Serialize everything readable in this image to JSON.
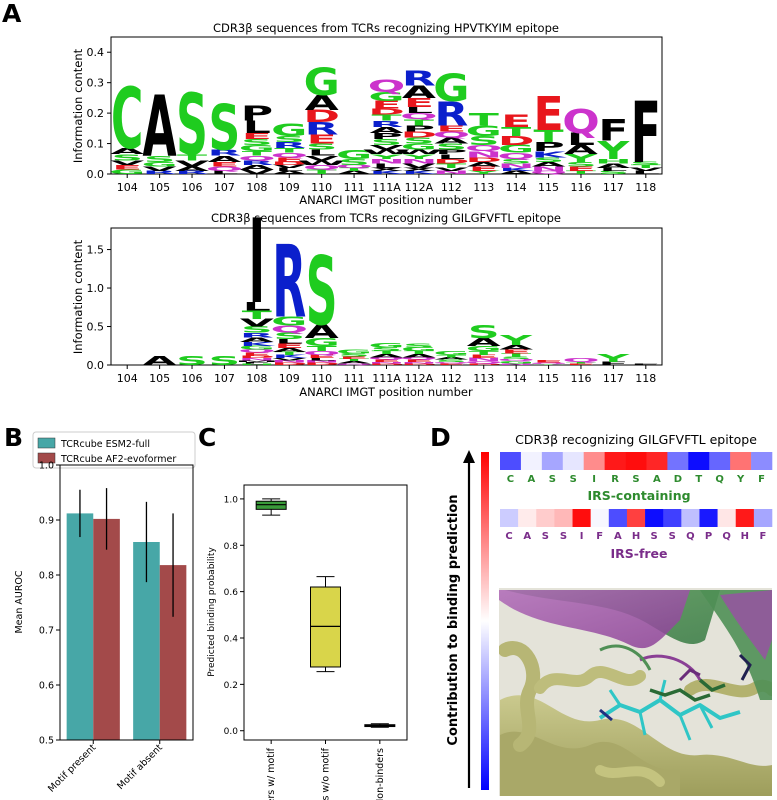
{
  "panels": {
    "a": "A",
    "b": "B",
    "c": "C",
    "d": "D"
  },
  "colors": {
    "hydrophobic": "#000000",
    "polar": "#1fcc1f",
    "basic": "#0b1fcc",
    "acidic": "#e8161c",
    "amide": "#cc33cc",
    "esm": "#47a7a7",
    "af2": "#a34a4a",
    "binders_motif": "#3a9b3a",
    "binders_nomotif": "#d9d54a",
    "nonbinders": "#555555",
    "irs_label": "#2e8b2e",
    "irsfree_label": "#7a2d8a"
  },
  "chart_data": [
    {
      "id": "logo-hpvtkyim",
      "type": "sequence-logo",
      "title": "CDR3β sequences from TCRs recognizing HPVTKYIM epitope",
      "xlabel": "ANARCI IMGT position number",
      "ylabel": "Information content",
      "ylim": [
        0,
        0.45
      ],
      "yticks": [
        "0.0",
        "0.1",
        "0.2",
        "0.3",
        "0.4"
      ],
      "categories": [
        "104",
        "105",
        "106",
        "107",
        "108",
        "109",
        "110",
        "111",
        "111A",
        "112A",
        "112",
        "113",
        "114",
        "115",
        "116",
        "117",
        "118"
      ],
      "stacks": [
        [
          [
            "C",
            0.2
          ],
          [
            "S",
            0.02
          ],
          [
            "A",
            0.02
          ],
          [
            "G",
            0.015
          ],
          [
            "E",
            0.015
          ],
          [
            "V",
            0.015
          ]
        ],
        [
          [
            "A",
            0.2
          ],
          [
            "S",
            0.02
          ],
          [
            "V",
            0.015
          ],
          [
            "G",
            0.015
          ],
          [
            "R",
            0.01
          ]
        ],
        [
          [
            "S",
            0.2
          ],
          [
            "V",
            0.02
          ],
          [
            "T",
            0.02
          ],
          [
            "A",
            0.015
          ],
          [
            "R",
            0.01
          ]
        ],
        [
          [
            "S",
            0.15
          ],
          [
            "A",
            0.02
          ],
          [
            "R",
            0.02
          ],
          [
            "Q",
            0.015
          ],
          [
            "E",
            0.015
          ],
          [
            "L",
            0.01
          ]
        ],
        [
          [
            "P",
            0.05
          ],
          [
            "L",
            0.04
          ],
          [
            "G",
            0.02
          ],
          [
            "S",
            0.02
          ],
          [
            "E",
            0.02
          ],
          [
            "V",
            0.015
          ],
          [
            "A",
            0.015
          ],
          [
            "R",
            0.015
          ],
          [
            "Q",
            0.015
          ],
          [
            "T",
            0.015
          ]
        ],
        [
          [
            "G",
            0.04
          ],
          [
            "R",
            0.02
          ],
          [
            "S",
            0.02
          ],
          [
            "E",
            0.015
          ],
          [
            "Q",
            0.015
          ],
          [
            "T",
            0.015
          ],
          [
            "A",
            0.01
          ],
          [
            "L",
            0.01
          ],
          [
            "V",
            0.01
          ],
          [
            "D",
            0.01
          ]
        ],
        [
          [
            "G",
            0.09
          ],
          [
            "A",
            0.05
          ],
          [
            "R",
            0.04
          ],
          [
            "D",
            0.04
          ],
          [
            "E",
            0.03
          ],
          [
            "L",
            0.02
          ],
          [
            "S",
            0.02
          ],
          [
            "T",
            0.015
          ],
          [
            "Q",
            0.015
          ],
          [
            "W",
            0.015
          ],
          [
            "V",
            0.015
          ]
        ],
        [
          [
            "G",
            0.03
          ],
          [
            "S",
            0.02
          ],
          [
            "A",
            0.01
          ],
          [
            "T",
            0.01
          ],
          [
            "Q",
            0.01
          ]
        ],
        [
          [
            "Q",
            0.04
          ],
          [
            "G",
            0.03
          ],
          [
            "E",
            0.025
          ],
          [
            "S",
            0.02
          ],
          [
            "P",
            0.02
          ],
          [
            "A",
            0.02
          ],
          [
            "R",
            0.02
          ],
          [
            "T",
            0.02
          ],
          [
            "D",
            0.02
          ],
          [
            "L",
            0.015
          ],
          [
            "N",
            0.015
          ],
          [
            "Y",
            0.015
          ],
          [
            "W",
            0.015
          ],
          [
            "V",
            0.015
          ],
          [
            "K",
            0.01
          ],
          [
            "X",
            0.01
          ]
        ],
        [
          [
            "R",
            0.05
          ],
          [
            "E",
            0.03
          ],
          [
            "A",
            0.04
          ],
          [
            "G",
            0.02
          ],
          [
            "S",
            0.02
          ],
          [
            "D",
            0.02
          ],
          [
            "P",
            0.02
          ],
          [
            "T",
            0.02
          ],
          [
            "Q",
            0.02
          ],
          [
            "L",
            0.02
          ],
          [
            "V",
            0.015
          ],
          [
            "N",
            0.015
          ],
          [
            "Y",
            0.015
          ],
          [
            "W",
            0.015
          ],
          [
            "K",
            0.01
          ],
          [
            "X",
            0.01
          ]
        ],
        [
          [
            "G",
            0.09
          ],
          [
            "R",
            0.08
          ],
          [
            "S",
            0.02
          ],
          [
            "A",
            0.02
          ],
          [
            "Q",
            0.02
          ],
          [
            "E",
            0.02
          ],
          [
            "T",
            0.015
          ],
          [
            "D",
            0.015
          ],
          [
            "L",
            0.015
          ],
          [
            "P",
            0.015
          ],
          [
            "N",
            0.01
          ],
          [
            "V",
            0.01
          ]
        ],
        [
          [
            "T",
            0.04
          ],
          [
            "G",
            0.035
          ],
          [
            "S",
            0.03
          ],
          [
            "N",
            0.02
          ],
          [
            "Q",
            0.02
          ],
          [
            "E",
            0.015
          ],
          [
            "A",
            0.015
          ],
          [
            "D",
            0.015
          ],
          [
            "Y",
            0.01
          ]
        ],
        [
          [
            "E",
            0.04
          ],
          [
            "D",
            0.03
          ],
          [
            "T",
            0.03
          ],
          [
            "G",
            0.025
          ],
          [
            "Q",
            0.02
          ],
          [
            "N",
            0.015
          ],
          [
            "S",
            0.015
          ],
          [
            "A",
            0.01
          ],
          [
            "K",
            0.01
          ]
        ],
        [
          [
            "E",
            0.11
          ],
          [
            "T",
            0.04
          ],
          [
            "P",
            0.03
          ],
          [
            "K",
            0.02
          ],
          [
            "N",
            0.015
          ],
          [
            "A",
            0.015
          ],
          [
            "S",
            0.015
          ],
          [
            "Q",
            0.01
          ]
        ],
        [
          [
            "Q",
            0.08
          ],
          [
            "L",
            0.04
          ],
          [
            "Y",
            0.025
          ],
          [
            "A",
            0.03
          ],
          [
            "E",
            0.015
          ],
          [
            "S",
            0.015
          ],
          [
            "T",
            0.01
          ]
        ],
        [
          [
            "F",
            0.07
          ],
          [
            "Y",
            0.06
          ],
          [
            "A",
            0.015
          ],
          [
            "H",
            0.015
          ],
          [
            "S",
            0.01
          ],
          [
            "L",
            0.01
          ]
        ],
        [
          [
            "F",
            0.2
          ],
          [
            "L",
            0.01
          ],
          [
            "V",
            0.01
          ],
          [
            "T",
            0.01
          ],
          [
            "S",
            0.01
          ]
        ]
      ]
    },
    {
      "id": "logo-gilgfvftl",
      "type": "sequence-logo",
      "title": "CDR3β sequences from TCRs recognizing GILGFVFTL epitope",
      "xlabel": "ANARCI IMGT position number",
      "ylabel": "Information content",
      "ylim": [
        0,
        1.78
      ],
      "yticks": [
        "0.0",
        "0.5",
        "1.0",
        "1.5"
      ],
      "categories": [
        "104",
        "105",
        "106",
        "107",
        "108",
        "109",
        "110",
        "111",
        "111A",
        "112A",
        "112",
        "113",
        "114",
        "115",
        "116",
        "117",
        "118"
      ],
      "stacks": [
        [],
        [
          [
            "A",
            0.12
          ]
        ],
        [
          [
            "S",
            0.12
          ]
        ],
        [
          [
            "S",
            0.12
          ]
        ],
        [
          [
            "I",
            1.1
          ],
          [
            "T",
            0.11
          ],
          [
            "L",
            0.11
          ],
          [
            "S",
            0.08
          ],
          [
            "V",
            0.1
          ],
          [
            "A",
            0.06
          ],
          [
            "R",
            0.06
          ],
          [
            "G",
            0.05
          ],
          [
            "K",
            0.05
          ],
          [
            "E",
            0.04
          ],
          [
            "Q",
            0.04
          ],
          [
            "N",
            0.03
          ],
          [
            "D",
            0.03
          ],
          [
            "H",
            0.02
          ],
          [
            "F",
            0.02
          ],
          [
            "M",
            0.02
          ]
        ],
        [
          [
            "R",
            0.95
          ],
          [
            "G",
            0.12
          ],
          [
            "Q",
            0.09
          ],
          [
            "S",
            0.08
          ],
          [
            "E",
            0.06
          ],
          [
            "L",
            0.06
          ],
          [
            "A",
            0.05
          ],
          [
            "K",
            0.04
          ],
          [
            "T",
            0.04
          ],
          [
            "D",
            0.03
          ],
          [
            "N",
            0.03
          ],
          [
            "V",
            0.03
          ]
        ],
        [
          [
            "S",
            0.9
          ],
          [
            "A",
            0.18
          ],
          [
            "G",
            0.1
          ],
          [
            "T",
            0.07
          ],
          [
            "Q",
            0.05
          ],
          [
            "E",
            0.04
          ],
          [
            "D",
            0.03
          ],
          [
            "N",
            0.03
          ],
          [
            "L",
            0.03
          ]
        ],
        [
          [
            "G",
            0.05
          ],
          [
            "S",
            0.04
          ],
          [
            "A",
            0.03
          ],
          [
            "T",
            0.03
          ],
          [
            "E",
            0.03
          ],
          [
            "Q",
            0.02
          ]
        ],
        [
          [
            "G",
            0.06
          ],
          [
            "S",
            0.05
          ],
          [
            "A",
            0.04
          ],
          [
            "T",
            0.04
          ],
          [
            "E",
            0.03
          ],
          [
            "Q",
            0.03
          ],
          [
            "D",
            0.02
          ],
          [
            "N",
            0.02
          ]
        ],
        [
          [
            "G",
            0.05
          ],
          [
            "S",
            0.05
          ],
          [
            "A",
            0.04
          ],
          [
            "T",
            0.04
          ],
          [
            "E",
            0.03
          ],
          [
            "Q",
            0.03
          ],
          [
            "D",
            0.02
          ],
          [
            "N",
            0.02
          ]
        ],
        [
          [
            "G",
            0.05
          ],
          [
            "S",
            0.03
          ],
          [
            "A",
            0.03
          ],
          [
            "T",
            0.03
          ],
          [
            "E",
            0.02
          ],
          [
            "Q",
            0.02
          ]
        ],
        [
          [
            "S",
            0.17
          ],
          [
            "A",
            0.1
          ],
          [
            "G",
            0.07
          ],
          [
            "T",
            0.05
          ],
          [
            "N",
            0.04
          ],
          [
            "E",
            0.04
          ],
          [
            "Q",
            0.03
          ],
          [
            "D",
            0.02
          ]
        ],
        [
          [
            "Y",
            0.13
          ],
          [
            "A",
            0.06
          ],
          [
            "E",
            0.05
          ],
          [
            "T",
            0.04
          ],
          [
            "G",
            0.03
          ],
          [
            "Q",
            0.03
          ],
          [
            "S",
            0.03
          ],
          [
            "N",
            0.02
          ]
        ],
        [
          [
            "E",
            0.03
          ],
          [
            "Q",
            0.02
          ],
          [
            "T",
            0.01
          ]
        ],
        [
          [
            "Q",
            0.05
          ],
          [
            "E",
            0.02
          ],
          [
            "T",
            0.02
          ]
        ],
        [
          [
            "Y",
            0.1
          ],
          [
            "F",
            0.04
          ]
        ],
        [
          [
            "F",
            0.02
          ]
        ]
      ]
    },
    {
      "id": "bar-auroc",
      "type": "bar",
      "ylabel": "Mean AUROC",
      "ylim": [
        0.5,
        1.0
      ],
      "yticks": [
        "0.5",
        "0.6",
        "0.7",
        "0.8",
        "0.9",
        "1.0"
      ],
      "categories": [
        "Motif present",
        "Motif absent"
      ],
      "legend_position": "top",
      "series": [
        {
          "name": "TCRcube ESM2-full",
          "values": [
            0.912,
            0.86
          ],
          "errors": [
            0.043,
            0.073
          ]
        },
        {
          "name": "TCRcube AF2-evoformer",
          "values": [
            0.902,
            0.818
          ],
          "errors": [
            0.056,
            0.094
          ]
        }
      ]
    },
    {
      "id": "box-probability",
      "type": "box",
      "ylabel": "Predicted binding probability",
      "ylim": [
        -0.04,
        1.06
      ],
      "yticks": [
        "0.0",
        "0.2",
        "0.4",
        "0.6",
        "0.8",
        "1.0"
      ],
      "categories": [
        "Binders w/ motif",
        "Binders w/o motif",
        "Non-binders"
      ],
      "boxes": [
        {
          "whisker_low": 0.93,
          "q1": 0.955,
          "median": 0.975,
          "q3": 0.99,
          "whisker_high": 1.0
        },
        {
          "whisker_low": 0.255,
          "q1": 0.275,
          "median": 0.45,
          "q3": 0.62,
          "whisker_high": 0.665
        },
        {
          "whisker_low": 0.015,
          "q1": 0.018,
          "median": 0.022,
          "q3": 0.026,
          "whisker_high": 0.03
        }
      ]
    },
    {
      "id": "heatmap-contribution",
      "type": "heatmap",
      "title": "CDR3β recognizing GILGFVFTL epitope",
      "ylabel": "Contribution to binding prediction",
      "colormap": "blue-white-red",
      "rows": [
        {
          "label": "IRS-containing",
          "residues": [
            "C",
            "A",
            "S",
            "S",
            "I",
            "R",
            "S",
            "A",
            "D",
            "T",
            "Q",
            "Y",
            "F"
          ],
          "values": [
            -0.7,
            -0.05,
            -0.35,
            -0.1,
            0.45,
            0.9,
            0.95,
            0.85,
            -0.55,
            -0.95,
            -0.6,
            0.55,
            -0.45
          ]
        },
        {
          "label": "IRS-free",
          "residues": [
            "C",
            "A",
            "S",
            "S",
            "I",
            "F",
            "A",
            "H",
            "S",
            "S",
            "Q",
            "P",
            "Q",
            "H",
            "F"
          ],
          "values": [
            -0.2,
            0.08,
            0.2,
            0.28,
            0.95,
            -0.03,
            -0.7,
            0.75,
            -0.95,
            -0.75,
            -0.25,
            -0.9,
            0.1,
            0.9,
            -0.35
          ]
        }
      ]
    }
  ]
}
